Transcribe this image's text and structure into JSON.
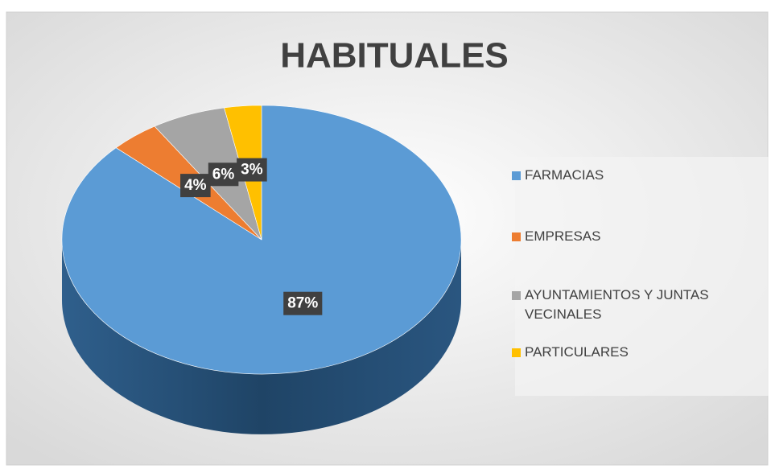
{
  "chart_data": {
    "type": "pie",
    "title": "HABITUALES",
    "categories": [
      "FARMACIAS",
      "EMPRESAS",
      "AYUNTAMIENTOS Y JUNTAS VECINALES",
      "PARTICULARES"
    ],
    "values": [
      87,
      4,
      6,
      3
    ],
    "value_labels": [
      "87%",
      "4%",
      "6%",
      "3%"
    ],
    "colors": [
      "#5b9bd5",
      "#ed7d31",
      "#a5a5a5",
      "#ffc000"
    ],
    "legend": "right"
  }
}
